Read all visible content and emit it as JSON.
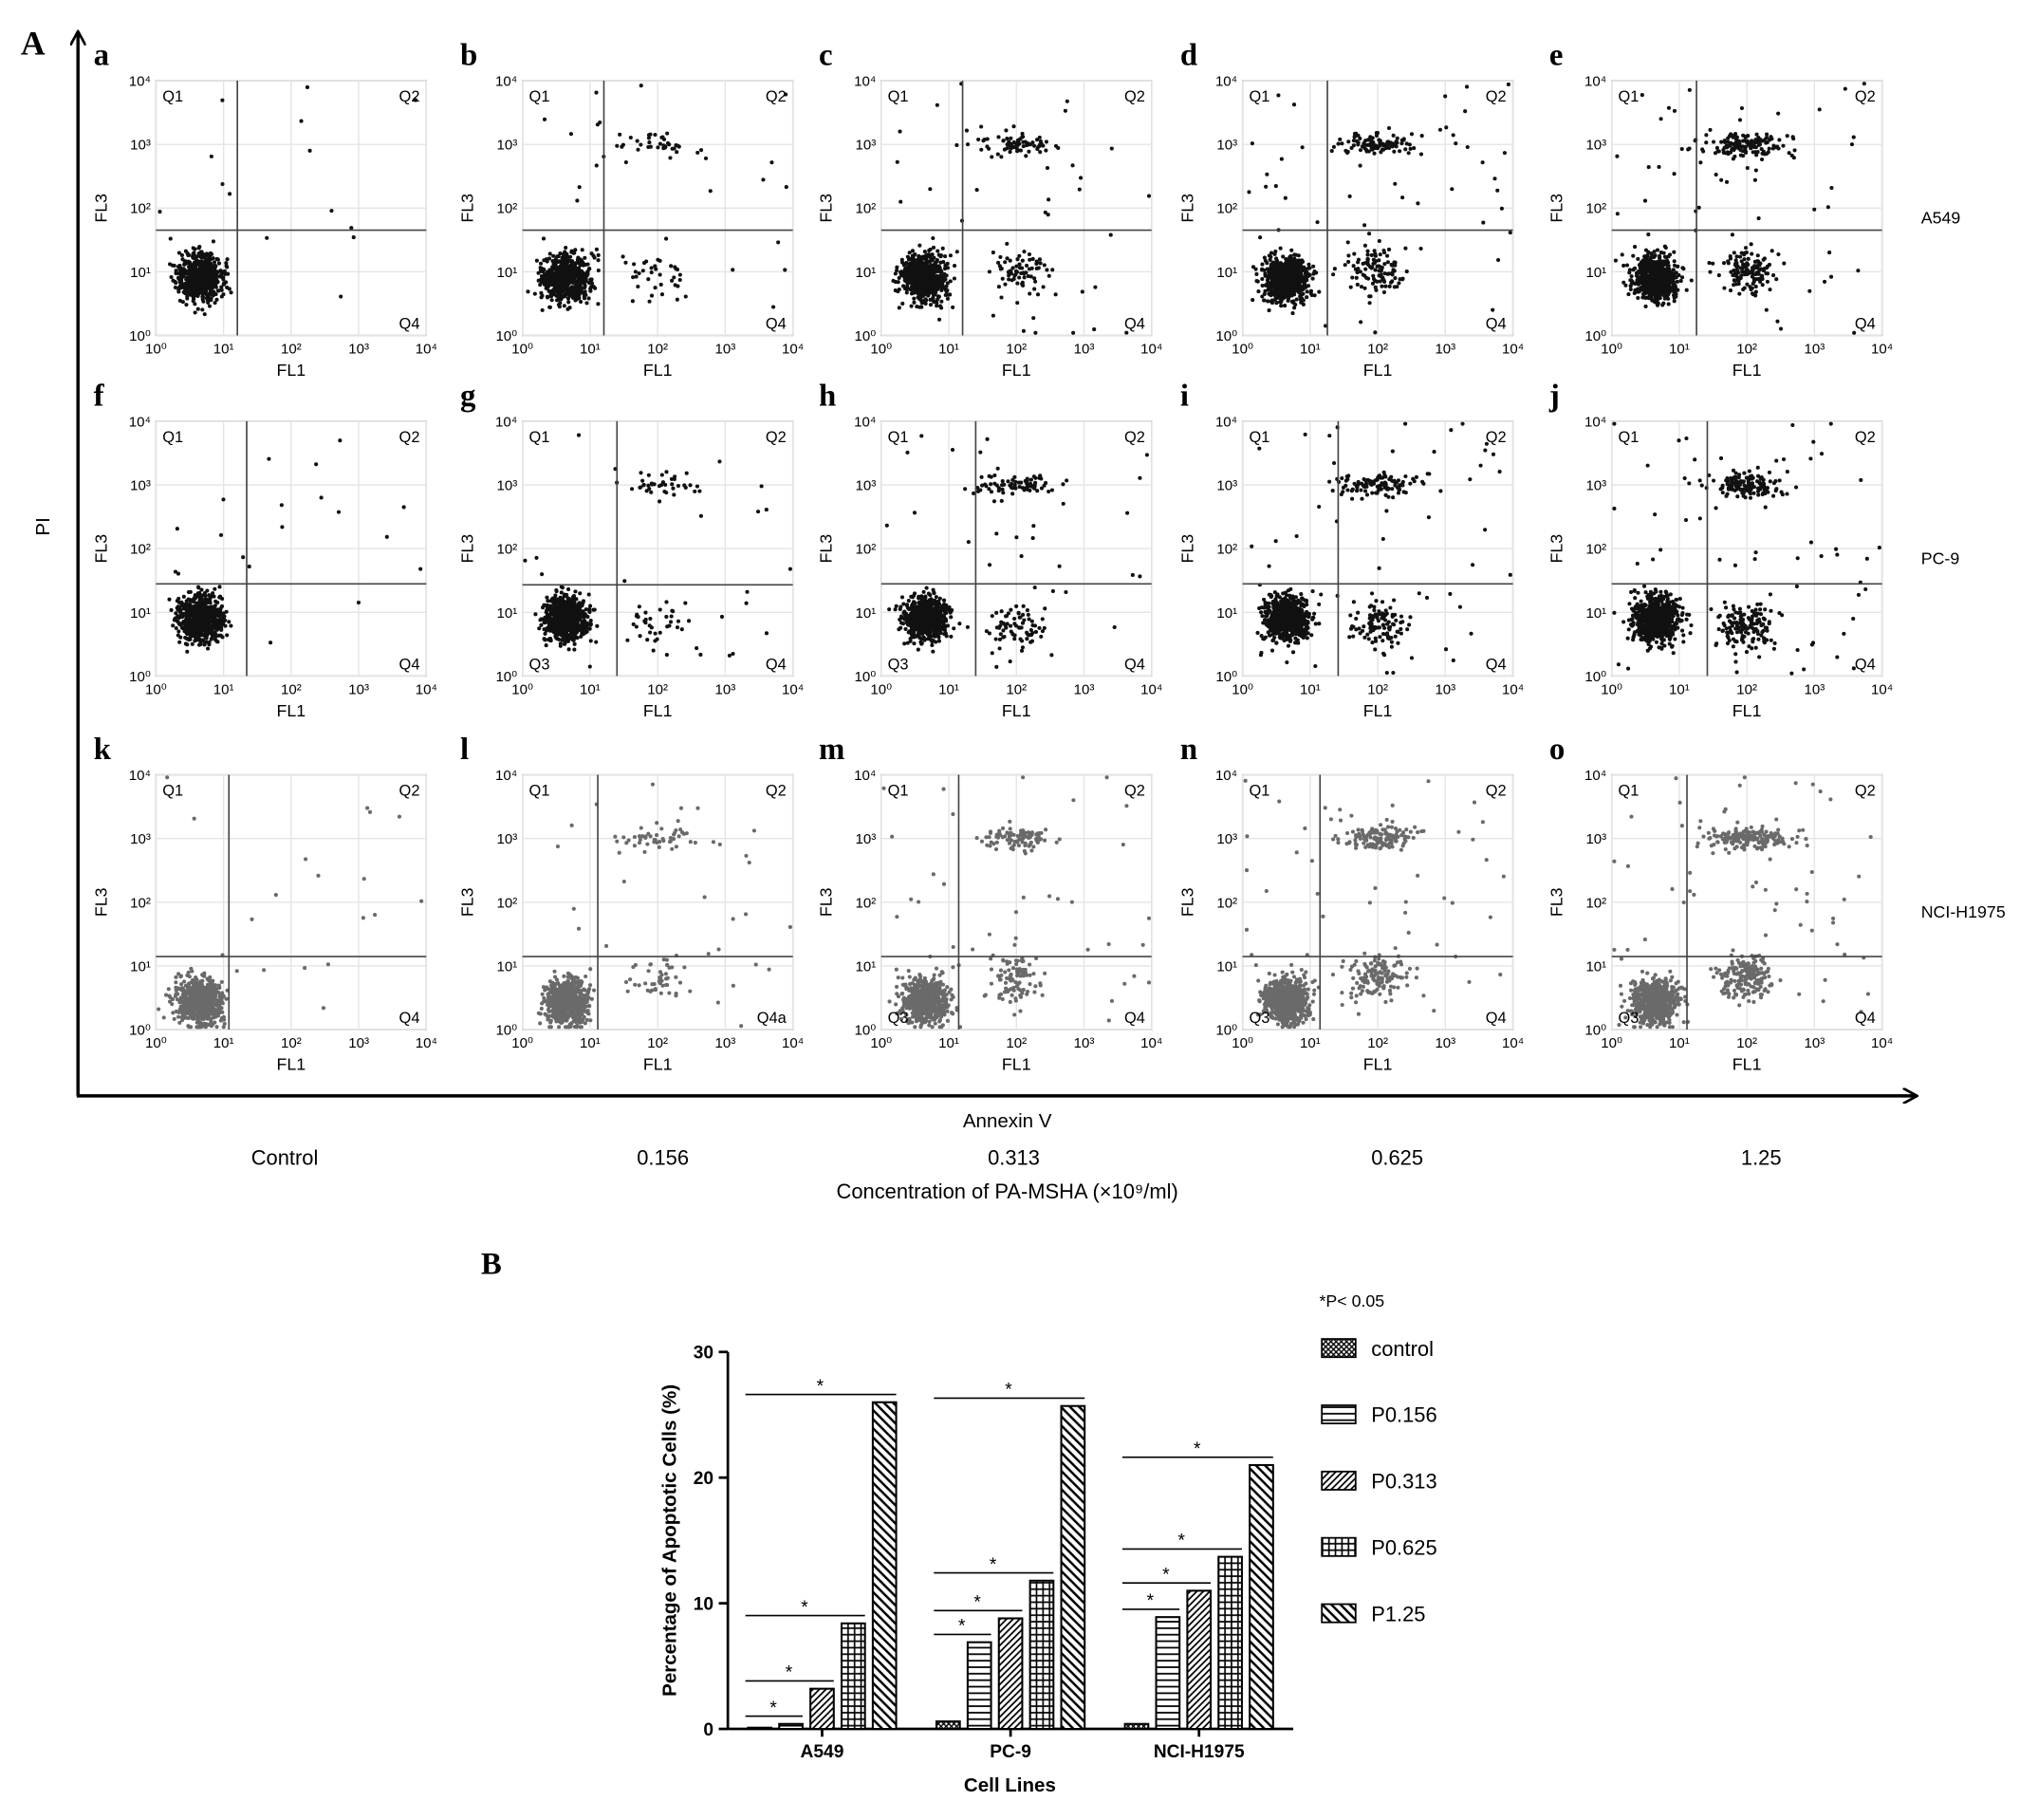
{
  "figure_a": {
    "label": "A",
    "y_axis_label": "PI",
    "x_axis_label": "Annexin V",
    "x_title": "Concentration of PA-MSHA (×10⁹/ml)",
    "columns": [
      "Control",
      "0.156",
      "0.313",
      "0.625",
      "1.25"
    ],
    "rows": [
      "A549",
      "PC-9",
      "NCI-H1975"
    ],
    "panel_x_label": "FL1",
    "panel_y_label": "FL3",
    "log_scale": true,
    "lim": [
      1,
      10000
    ],
    "ticks": [
      {
        "value": 1,
        "label": "10⁰"
      },
      {
        "value": 10,
        "label": "10¹"
      },
      {
        "value": 100,
        "label": "10²"
      },
      {
        "value": 1000,
        "label": "10³"
      },
      {
        "value": 10000,
        "label": "10⁴"
      }
    ],
    "panels": [
      {
        "letter": "a",
        "gate": [
          16,
          45
        ],
        "quadrants": {
          "top_left": "Q1",
          "top_right": "Q2",
          "bottom_right": "Q4"
        }
      },
      {
        "letter": "b",
        "gate": [
          16,
          45
        ],
        "quadrants": {
          "top_left": "Q1",
          "top_right": "Q2",
          "bottom_right": "Q4"
        }
      },
      {
        "letter": "c",
        "gate": [
          16,
          45
        ],
        "quadrants": {
          "top_left": "Q1",
          "top_right": "Q2",
          "bottom_right": "Q4"
        }
      },
      {
        "letter": "d",
        "gate": [
          18,
          45
        ],
        "quadrants": {
          "top_left": "Q1",
          "top_right": "Q2",
          "bottom_right": "Q4"
        }
      },
      {
        "letter": "e",
        "gate": [
          18,
          45
        ],
        "quadrants": {
          "top_left": "Q1",
          "top_right": "Q2",
          "bottom_right": "Q4"
        }
      },
      {
        "letter": "f",
        "gate": [
          22,
          28
        ],
        "quadrants": {
          "top_left": "Q1",
          "top_right": "Q2",
          "bottom_right": "Q4"
        }
      },
      {
        "letter": "g",
        "gate": [
          25,
          27
        ],
        "quadrants": {
          "top_left": "Q1",
          "top_right": "Q2",
          "bottom_left": "Q3",
          "bottom_right": "Q4"
        }
      },
      {
        "letter": "h",
        "gate": [
          25,
          28
        ],
        "quadrants": {
          "top_left": "Q1",
          "top_right": "Q2",
          "bottom_left": "Q3",
          "bottom_right": "Q4"
        }
      },
      {
        "letter": "i",
        "gate": [
          26,
          28
        ],
        "quadrants": {
          "top_left": "Q1",
          "top_right": "Q2",
          "bottom_right": "Q4"
        }
      },
      {
        "letter": "j",
        "gate": [
          26,
          28
        ],
        "quadrants": {
          "top_left": "Q1",
          "top_right": "Q2",
          "bottom_right": "Q4"
        }
      },
      {
        "letter": "k",
        "gate": [
          12,
          14
        ],
        "quadrants": {
          "top_left": "Q1",
          "top_right": "Q2",
          "bottom_right": "Q4"
        }
      },
      {
        "letter": "l",
        "gate": [
          13,
          14
        ],
        "quadrants": {
          "top_left": "Q1",
          "top_right": "Q2",
          "bottom_right": "Q4a"
        }
      },
      {
        "letter": "m",
        "gate": [
          14,
          14
        ],
        "quadrants": {
          "top_left": "Q1",
          "top_right": "Q2",
          "bottom_left": "Q3",
          "bottom_right": "Q4"
        }
      },
      {
        "letter": "n",
        "gate": [
          14,
          14
        ],
        "quadrants": {
          "top_left": "Q1",
          "top_right": "Q2",
          "bottom_left": "Q3",
          "bottom_right": "Q4"
        }
      },
      {
        "letter": "o",
        "gate": [
          13,
          14
        ],
        "quadrants": {
          "top_left": "Q1",
          "top_right": "Q2",
          "bottom_left": "Q3",
          "bottom_right": "Q4"
        }
      }
    ]
  },
  "chart_data": {
    "type": "bar",
    "label": "B",
    "note": "*P< 0.05",
    "y_axis_label": "Percentage of Apoptotic Cells (%)",
    "x_axis_label": "Cell Lines",
    "categories": [
      "A549",
      "PC-9",
      "NCI-H1975"
    ],
    "ylim": [
      0,
      30
    ],
    "yticks": [
      0,
      10,
      20,
      30
    ],
    "significance_label": "*",
    "series": [
      {
        "name": "control",
        "color": "#000000",
        "pattern": "crosshatch",
        "values": [
          0.1,
          0.6,
          0.4
        ],
        "significant": false
      },
      {
        "name": "P0.156",
        "color": "#000000",
        "pattern": "horizontal",
        "values": [
          0.4,
          6.9,
          8.9
        ],
        "significant": true
      },
      {
        "name": "P0.313",
        "color": "#000000",
        "pattern": "diagonal-up",
        "values": [
          3.2,
          8.8,
          11.0
        ],
        "significant": true
      },
      {
        "name": "P0.625",
        "color": "#000000",
        "pattern": "grid",
        "values": [
          8.4,
          11.8,
          13.7
        ],
        "significant": true
      },
      {
        "name": "P1.25",
        "color": "#000000",
        "pattern": "diagonal-down",
        "values": [
          26.0,
          25.7,
          21.0
        ],
        "significant": true
      }
    ]
  }
}
